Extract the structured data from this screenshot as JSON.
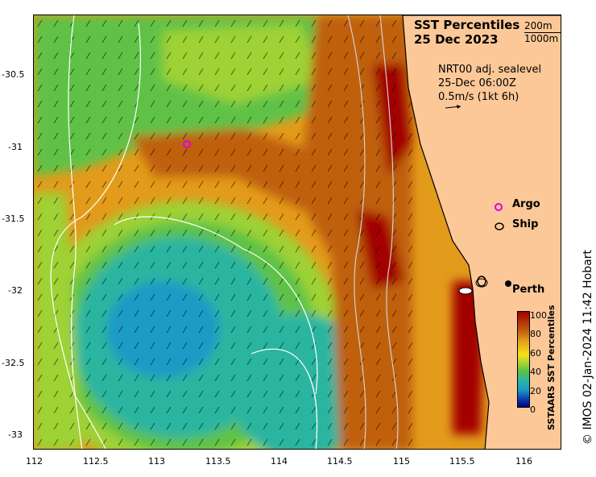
{
  "title": {
    "line1": "SST Percentiles",
    "line2": "25 Dec 2023"
  },
  "contours_legend": [
    "200m",
    "1000m"
  ],
  "current_info": {
    "line1": "NRT00 adj. sealevel",
    "line2": "25-Dec 06:00Z",
    "line3": "0.5m/s (1kt 6h)"
  },
  "legend": {
    "argo": "Argo",
    "ship": "Ship"
  },
  "place_label": "Perth",
  "colorbar": {
    "title": "SSTAARS SST Percentiles",
    "ticks": [
      "100",
      "80",
      "60",
      "40",
      "20",
      "0"
    ]
  },
  "credit": "© IMOS 02-Jan-2024 11:42 Hobart",
  "axes": {
    "lat_ticks": [
      "-30.5",
      "-31",
      "-31.5",
      "-32",
      "-32.5",
      "-33"
    ],
    "lon_ticks": [
      "112",
      "112.5",
      "113",
      "113.5",
      "114",
      "114.5",
      "115",
      "115.5",
      "116"
    ]
  },
  "colors": {
    "land": "#fcc898",
    "ocean_low": "#008080",
    "ocean_high": "#a30000",
    "argo": "#e000e0"
  }
}
